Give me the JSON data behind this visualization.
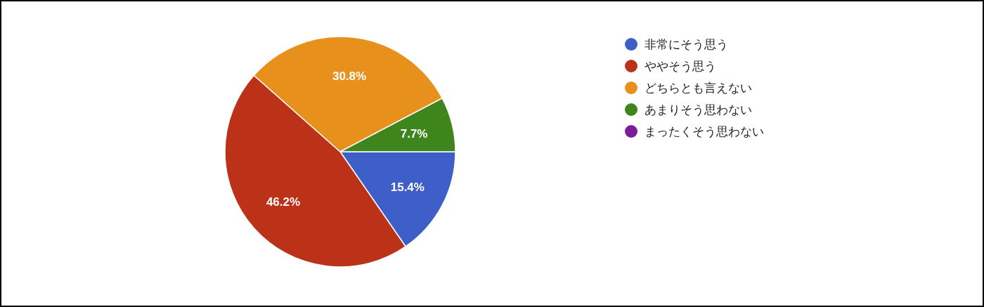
{
  "chart_data": {
    "type": "pie",
    "categories": [
      "非常にそう思う",
      "ややそう思う",
      "どちらとも言えない",
      "あまりそう思わない",
      "まったくそう思わない"
    ],
    "values": [
      15.4,
      46.2,
      30.8,
      7.7,
      0
    ],
    "colors": [
      "#3d5fc7",
      "#bb3219",
      "#e8901c",
      "#3f851d",
      "#7a1d96"
    ],
    "value_labels": [
      "15.4%",
      "46.2%",
      "30.8%",
      "7.7%",
      null
    ],
    "legend": "top right"
  }
}
